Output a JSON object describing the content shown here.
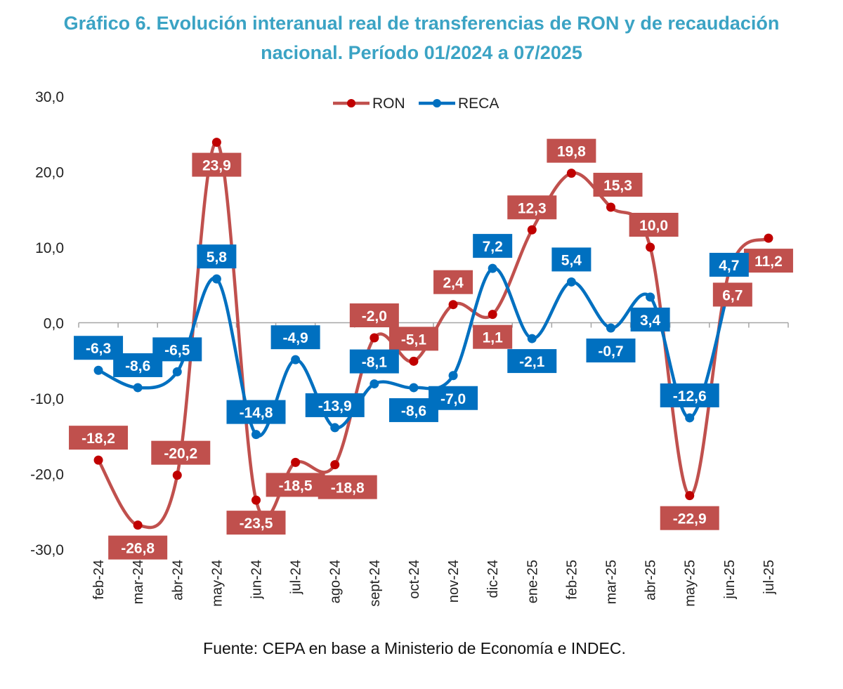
{
  "header": {
    "title_line1": "Gráfico 6. Evolución interanual real de transferencias de RON y de recaudación",
    "title_line2": "nacional. Período 01/2024 a 07/2025"
  },
  "footer": {
    "source": "Fuente: CEPA en base a Ministerio de Economía e INDEC."
  },
  "chart_data": {
    "type": "line",
    "title": "Gráfico 6. Evolución interanual real de transferencias de RON y de recaudación nacional. Período 01/2024 a 07/2025",
    "xlabel": "",
    "ylabel": "",
    "ylim": [
      -30,
      30
    ],
    "yticks": [
      "30,0",
      "20,0",
      "10,0",
      "0,0",
      "-10,0",
      "-20,0",
      "-30,0"
    ],
    "grid": false,
    "legend_position": "top-center",
    "categories": [
      "feb-24",
      "mar-24",
      "abr-24",
      "may-24",
      "jun-24",
      "jul-24",
      "ago-24",
      "sept-24",
      "oct-24",
      "nov-24",
      "dic-24",
      "ene-25",
      "feb-25",
      "mar-25",
      "abr-25",
      "may-25",
      "jun-25",
      "jul-25"
    ],
    "series": [
      {
        "name": "RON",
        "color": "#c0504d",
        "marker_color": "#c00000",
        "values": [
          -18.2,
          -26.8,
          -20.2,
          23.9,
          -23.5,
          -18.5,
          -18.8,
          -2.0,
          -5.1,
          2.4,
          1.1,
          12.3,
          19.8,
          15.3,
          10.0,
          -22.9,
          6.7,
          11.2
        ],
        "labels": [
          "-18,2",
          "-26,8",
          "-20,2",
          "23,9",
          "-23,5",
          "-18,5",
          "-18,8",
          "-2,0",
          "-5,1",
          "2,4",
          "1,1",
          "12,3",
          "19,8",
          "15,3",
          "10,0",
          "-22,9",
          "6,7",
          "11,2"
        ]
      },
      {
        "name": "RECA",
        "color": "#0070c0",
        "marker_color": "#0070c0",
        "values": [
          -6.3,
          -8.6,
          -6.5,
          5.8,
          -14.8,
          -4.9,
          -13.9,
          -8.1,
          -8.6,
          -7.0,
          7.2,
          -2.1,
          5.4,
          -0.7,
          3.4,
          -12.6,
          4.7,
          null
        ],
        "labels": [
          "-6,3",
          "-8,6",
          "-6,5",
          "5,8",
          "-14,8",
          "-4,9",
          "-13,9",
          "-8,1",
          "-8,6",
          "-7,0",
          "7,2",
          "-2,1",
          "5,4",
          "-0,7",
          "3,4",
          "-12,6",
          "4,7",
          null
        ]
      }
    ]
  }
}
